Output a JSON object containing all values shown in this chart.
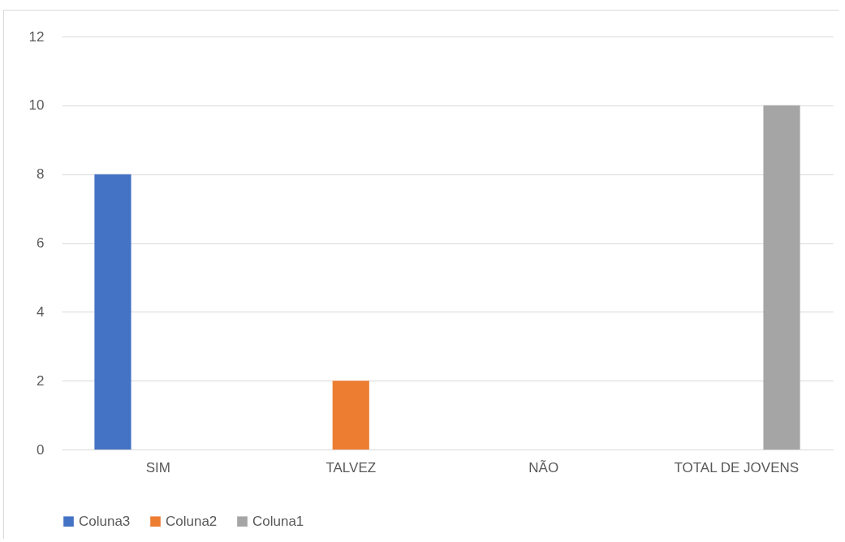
{
  "chart_data": {
    "type": "bar",
    "categories": [
      "SIM",
      "TALVEZ",
      "NÃO",
      "TOTAL DE JOVENS"
    ],
    "series": [
      {
        "name": "Coluna3",
        "color": "#4472c4",
        "values": [
          8,
          null,
          null,
          null
        ]
      },
      {
        "name": "Coluna2",
        "color": "#ed7d31",
        "values": [
          null,
          2,
          null,
          null
        ]
      },
      {
        "name": "Coluna1",
        "color": "#a5a5a5",
        "values": [
          null,
          null,
          null,
          10
        ]
      }
    ],
    "ylim": [
      0,
      12
    ],
    "yticks": [
      0,
      2,
      4,
      6,
      8,
      10,
      12
    ],
    "grid": "y",
    "legend": "bottom"
  }
}
